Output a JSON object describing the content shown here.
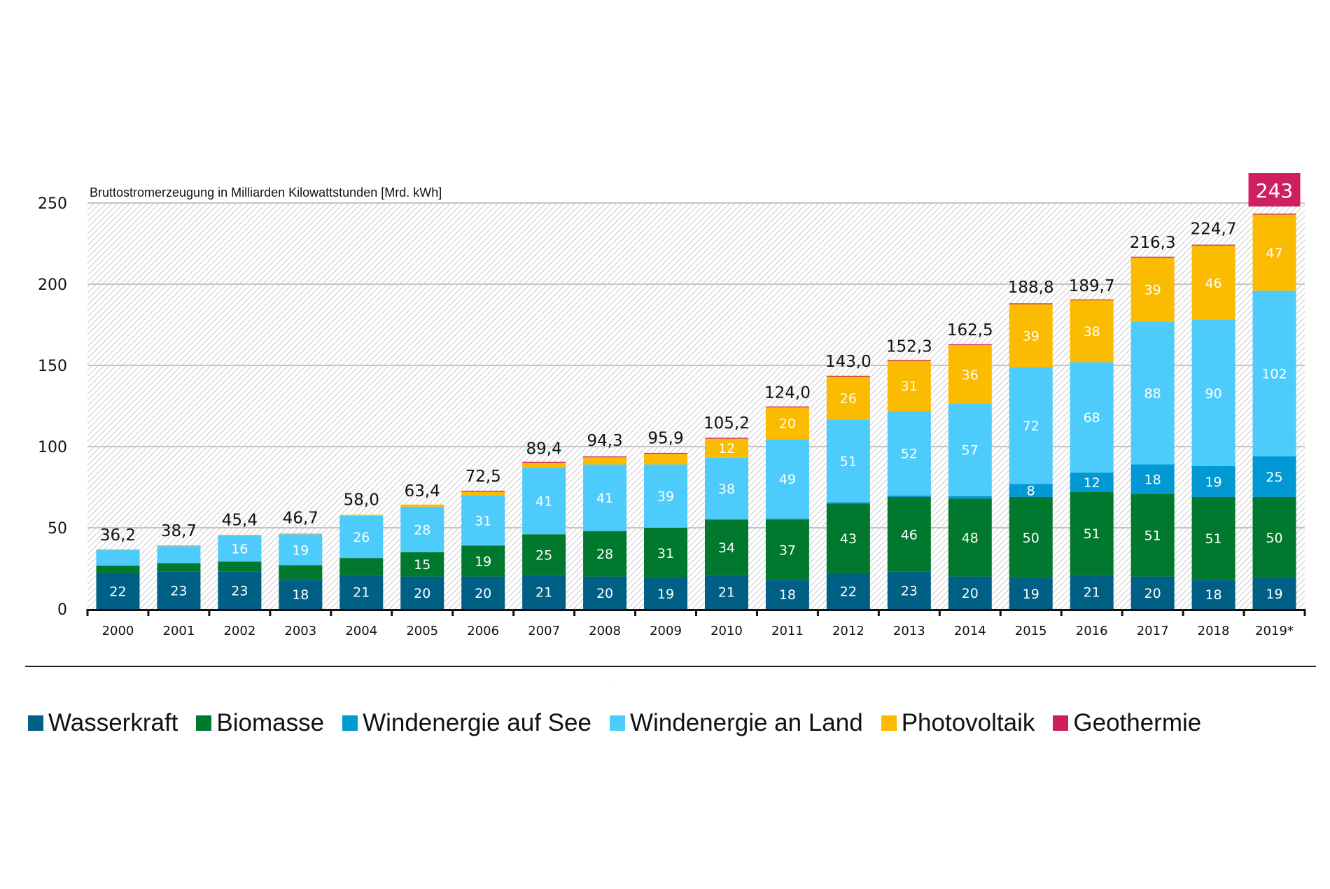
{
  "chart_data": {
    "type": "bar",
    "stacked": true,
    "title": "Bruttostromerzeugung in Milliarden Kilowattstunden [Mrd. kWh]",
    "xlabel": "",
    "ylabel": "Bruttostromerzeugung [Mrd. kWh]",
    "ylim": [
      0,
      250
    ],
    "yticks": [
      "0",
      "50",
      "100",
      "150",
      "200",
      "250"
    ],
    "ytick_values": [
      0,
      50,
      100,
      150,
      200,
      250
    ],
    "grid": true,
    "legend_position": "bottom",
    "categories": [
      "2000",
      "2001",
      "2002",
      "2003",
      "2004",
      "2005",
      "2006",
      "2007",
      "2008",
      "2009",
      "2010",
      "2011",
      "2012",
      "2013",
      "2014",
      "2015",
      "2016",
      "2017",
      "2018",
      "2019*"
    ],
    "totals": [
      36.2,
      38.7,
      45.4,
      46.7,
      58.0,
      63.4,
      72.5,
      89.4,
      94.3,
      95.9,
      105.2,
      124.0,
      143.0,
      152.3,
      162.5,
      188.8,
      189.7,
      216.3,
      224.7,
      243
    ],
    "total_labels": [
      "36,2",
      "38,7",
      "45,4",
      "46,7",
      "58,0",
      "63,4",
      "72,5",
      "89,4",
      "94,3",
      "95,9",
      "105,2",
      "124,0",
      "143,0",
      "152,3",
      "162,5",
      "188,8",
      "189,7",
      "216,3",
      "224,7",
      "243"
    ],
    "highlight_total": {
      "category": "2019*",
      "label": "243",
      "color": "#CE1F5E"
    },
    "series": [
      {
        "name": "Wasserkraft",
        "color": "#005F85",
        "values": [
          22,
          23,
          23,
          18,
          21,
          20,
          20,
          21,
          20,
          19,
          21,
          18,
          22,
          23,
          20,
          19,
          21,
          20,
          18,
          19
        ],
        "labels": [
          "22",
          "23",
          "23",
          "18",
          "21",
          "20",
          "20",
          "21",
          "20",
          "19",
          "21",
          "18",
          "22",
          "23",
          "20",
          "19",
          "21",
          "20",
          "18",
          "19"
        ]
      },
      {
        "name": "Biomasse",
        "color": "#00782D",
        "values": [
          4.7,
          5.2,
          6.2,
          9.0,
          10.4,
          15,
          19,
          25,
          28,
          31,
          34,
          37,
          43,
          46,
          48,
          50,
          51,
          51,
          51,
          50
        ],
        "labels": [
          "",
          "",
          "",
          "",
          "",
          "15",
          "19",
          "25",
          "28",
          "31",
          "34",
          "37",
          "43",
          "46",
          "48",
          "50",
          "51",
          "51",
          "51",
          "50"
        ]
      },
      {
        "name": "Windenergie auf See",
        "color": "#0099D4",
        "values": [
          0,
          0,
          0,
          0,
          0,
          0,
          0,
          0,
          0,
          0.04,
          0.2,
          0.6,
          0.7,
          0.9,
          1.5,
          8,
          12,
          18,
          19,
          25
        ],
        "labels": [
          "",
          "",
          "",
          "",
          "",
          "",
          "",
          "",
          "",
          "",
          "",
          "",
          "",
          "",
          "",
          "8",
          "12",
          "18",
          "19",
          "25"
        ]
      },
      {
        "name": "Windenergie an Land",
        "color": "#4DCBFA",
        "values": [
          9.5,
          10.5,
          16,
          19,
          26,
          28,
          31,
          41,
          41,
          39,
          38,
          49,
          51,
          52,
          57,
          72,
          68,
          88,
          90,
          102
        ],
        "labels": [
          "",
          "",
          "16",
          "19",
          "26",
          "28",
          "31",
          "41",
          "41",
          "39",
          "38",
          "49",
          "51",
          "52",
          "57",
          "72",
          "68",
          "88",
          "90",
          "102"
        ]
      },
      {
        "name": "Photovoltaik",
        "color": "#FABB00",
        "values": [
          0.06,
          0.1,
          0.2,
          0.3,
          0.6,
          1.3,
          2.2,
          3.1,
          4.4,
          6.6,
          11.7,
          19.6,
          26.4,
          31,
          36,
          38.7,
          38.1,
          39.4,
          45.8,
          46.9
        ],
        "labels": [
          "",
          "",
          "",
          "",
          "",
          "",
          "",
          "",
          "",
          "",
          "12",
          "20",
          "26",
          "31",
          "36",
          "39",
          "38",
          "39",
          "46",
          "47"
        ]
      },
      {
        "name": "Geothermie",
        "color": "#CE1F5E",
        "values": [
          0,
          0,
          0,
          0,
          0,
          0,
          0.001,
          0.001,
          0.02,
          0.02,
          0.03,
          0.02,
          0.03,
          0.08,
          0.1,
          0.13,
          0.18,
          0.16,
          0.18,
          0.2
        ],
        "labels": [
          "",
          "",
          "",
          "",
          "",
          "",
          "",
          "",
          "",
          "",
          "",
          "",
          "",
          "",
          "",
          "",
          "",
          "",
          "",
          ""
        ]
      }
    ]
  },
  "legend": {
    "items": [
      {
        "label": "Wasserkraft",
        "color": "#005F85"
      },
      {
        "label": "Biomasse",
        "color": "#00782D"
      },
      {
        "label": "Windenergie auf See",
        "color": "#0099D4"
      },
      {
        "label": "Windenergie an Land",
        "color": "#4DCBFA"
      },
      {
        "label": "Photovoltaik",
        "color": "#FABB00"
      },
      {
        "label": "Geothermie",
        "color": "#CE1F5E"
      }
    ]
  }
}
